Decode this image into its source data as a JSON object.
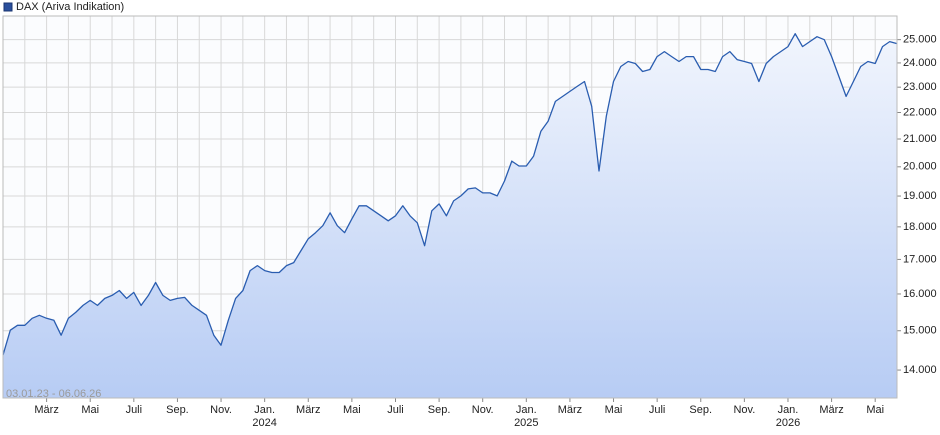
{
  "chart_data": {
    "type": "area-line",
    "legend": "DAX (Ariva Indikation)",
    "date_range": "03.01.23 - 06.06.26",
    "color": "#2a5db0",
    "log_scale": true,
    "grid": true,
    "ylim": [
      13330,
      26060
    ],
    "yticks": [
      {
        "value": 14000,
        "label": "14.000"
      },
      {
        "value": 15000,
        "label": "15.000"
      },
      {
        "value": 16000,
        "label": "16.000"
      },
      {
        "value": 17000,
        "label": "17.000"
      },
      {
        "value": 18000,
        "label": "18.000"
      },
      {
        "value": 19000,
        "label": "19.000"
      },
      {
        "value": 20000,
        "label": "20.000"
      },
      {
        "value": 21000,
        "label": "21.000"
      },
      {
        "value": 22000,
        "label": "22.000"
      },
      {
        "value": 23000,
        "label": "23.000"
      },
      {
        "value": 24000,
        "label": "24.000"
      },
      {
        "value": 25000,
        "label": "25.000"
      }
    ],
    "categories": [
      null,
      null,
      null,
      null,
      null,
      null,
      "März",
      null,
      null,
      null,
      null,
      null,
      "Mai",
      null,
      null,
      null,
      null,
      null,
      "Juli",
      null,
      null,
      null,
      null,
      null,
      "Sep.",
      null,
      null,
      null,
      null,
      null,
      "Nov.",
      null,
      null,
      null,
      null,
      null,
      "Jan.",
      null,
      null,
      null,
      null,
      null,
      "März",
      null,
      null,
      null,
      null,
      null,
      "Mai",
      null,
      null,
      null,
      null,
      null,
      "Juli",
      null,
      null,
      null,
      null,
      null,
      "Sep.",
      null,
      null,
      null,
      null,
      null,
      "Nov.",
      null,
      null,
      null,
      null,
      null,
      "Jan.",
      null,
      null,
      null,
      null,
      null,
      "März",
      null,
      null,
      null,
      null,
      null,
      "Mai",
      null,
      null,
      null,
      null,
      null,
      "Juli",
      null,
      null,
      null,
      null,
      null,
      "Sep.",
      null,
      null,
      null,
      null,
      null,
      "Nov.",
      null,
      null,
      null,
      null,
      null,
      "Jan.",
      null,
      null,
      null,
      null,
      null,
      "März",
      null,
      null,
      null,
      null,
      null,
      "Mai",
      null,
      null,
      null
    ],
    "category_years": [
      null,
      null,
      null,
      null,
      null,
      null,
      null,
      null,
      null,
      null,
      null,
      null,
      null,
      null,
      null,
      null,
      null,
      null,
      null,
      null,
      null,
      null,
      null,
      null,
      null,
      null,
      null,
      null,
      null,
      null,
      null,
      null,
      null,
      null,
      null,
      null,
      "2024",
      null,
      null,
      null,
      null,
      null,
      null,
      null,
      null,
      null,
      null,
      null,
      null,
      null,
      null,
      null,
      null,
      null,
      null,
      null,
      null,
      null,
      null,
      null,
      null,
      null,
      null,
      null,
      null,
      null,
      null,
      null,
      null,
      null,
      null,
      null,
      "2025",
      null,
      null,
      null,
      null,
      null,
      null,
      null,
      null,
      null,
      null,
      null,
      null,
      null,
      null,
      null,
      null,
      null,
      null,
      null,
      null,
      null,
      null,
      null,
      null,
      null,
      null,
      null,
      null,
      null,
      null,
      null,
      null,
      null,
      null,
      null,
      "2026",
      null,
      null,
      null,
      null,
      null,
      null,
      null,
      null,
      null,
      null,
      null,
      null,
      null,
      null,
      null
    ],
    "values": [
      14372,
      15013,
      15145,
      15145,
      15331,
      15411,
      15331,
      15278,
      14882,
      15331,
      15492,
      15683,
      15820,
      15683,
      15876,
      15959,
      16099,
      15876,
      16043,
      15683,
      15959,
      16326,
      15959,
      15820,
      15876,
      15904,
      15683,
      15547,
      15411,
      14882,
      14625,
      15278,
      15876,
      16099,
      16671,
      16818,
      16671,
      16613,
      16613,
      16818,
      16906,
      17264,
      17630,
      17816,
      18035,
      18449,
      18035,
      17816,
      18256,
      18676,
      18676,
      18513,
      18352,
      18193,
      18352,
      18676,
      18352,
      18129,
      17415,
      18513,
      18741,
      18352,
      18839,
      19005,
      19238,
      19272,
      19104,
      19104,
      19005,
      19509,
      20202,
      20027,
      20027,
      20379,
      21289,
      21664,
      22434,
      22631,
      22830,
      23030,
      23232,
      22239,
      19853,
      21854,
      23232,
      23848,
      24058,
      23974,
      23641,
      23724,
      24269,
      24481,
      24269,
      24058,
      24269,
      24269,
      23724,
      23724,
      23641,
      24269,
      24481,
      24142,
      24058,
      23974,
      23232,
      23974,
      24269,
      24481,
      24696,
      25263,
      24696,
      24913,
      25131,
      25000,
      24269,
      23436,
      22631,
      23232,
      23848,
      24058,
      23974,
      24696,
      24913,
      24826
    ]
  }
}
